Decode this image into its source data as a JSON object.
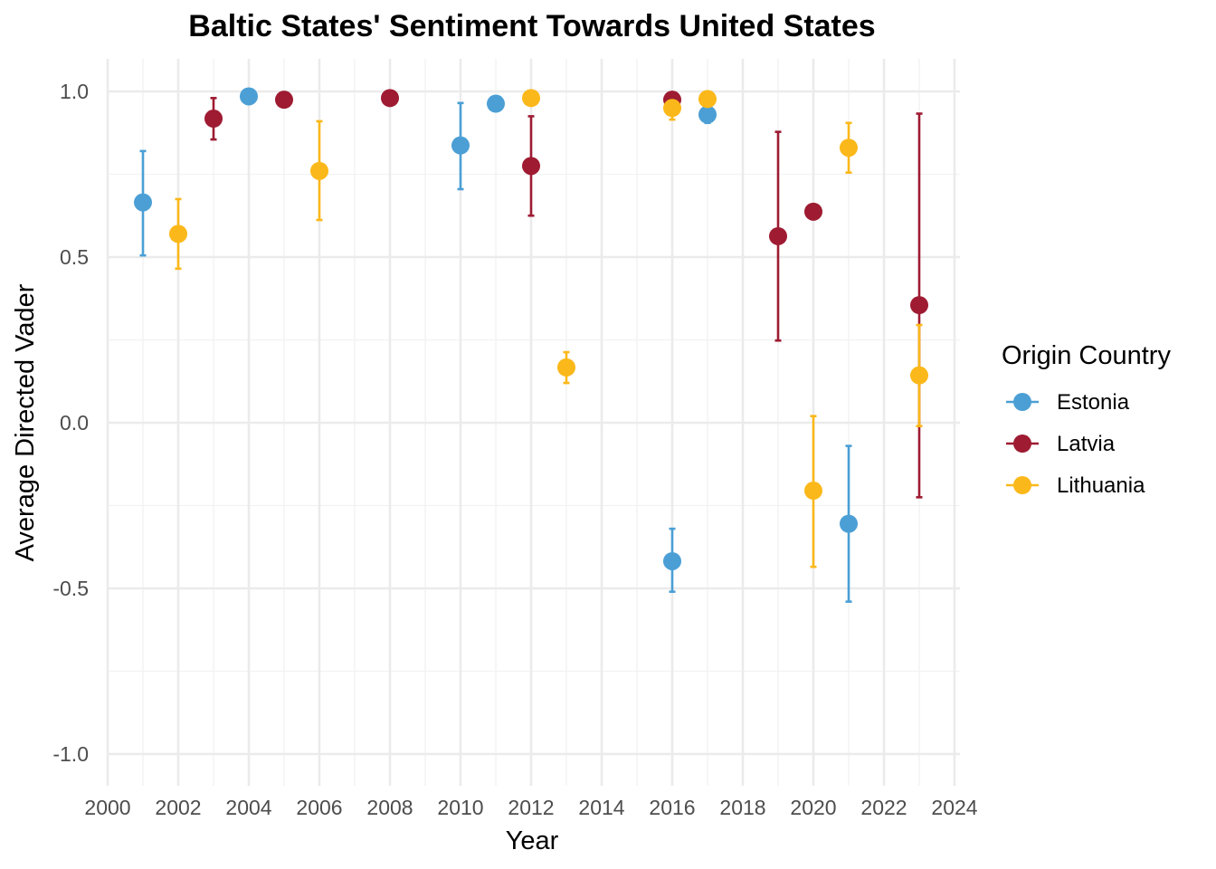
{
  "chart_data": {
    "type": "scatter",
    "title": "Baltic States' Sentiment Towards United States",
    "xlabel": "Year",
    "ylabel": "Average Directed Vader",
    "xlim": [
      2000,
      2024
    ],
    "ylim": [
      -1.1,
      1.1
    ],
    "x_ticks": [
      "2000",
      "2002",
      "2004",
      "2006",
      "2008",
      "2010",
      "2012",
      "2014",
      "2016",
      "2018",
      "2020",
      "2022",
      "2024"
    ],
    "y_ticks": [
      "-1.0",
      "-0.5",
      "0.0",
      "0.5",
      "1.0"
    ],
    "x_tick_values": [
      2000,
      2002,
      2004,
      2006,
      2008,
      2010,
      2012,
      2014,
      2016,
      2018,
      2020,
      2022,
      2024
    ],
    "y_tick_values": [
      -1.0,
      -0.5,
      0.0,
      0.5,
      1.0
    ],
    "grid": true,
    "legend": {
      "title": "Origin Country",
      "position": "right"
    },
    "series": [
      {
        "name": "Estonia",
        "color": "#4b9fd5",
        "points": [
          {
            "x": 2001,
            "y": 0.665,
            "ymin": 0.505,
            "ymax": 0.82
          },
          {
            "x": 2004,
            "y": 0.985
          },
          {
            "x": 2010,
            "y": 0.837,
            "ymin": 0.705,
            "ymax": 0.965
          },
          {
            "x": 2011,
            "y": 0.963
          },
          {
            "x": 2016,
            "y": -0.418,
            "ymin": -0.51,
            "ymax": -0.32
          },
          {
            "x": 2017,
            "y": 0.93,
            "ymin": 0.905,
            "ymax": 0.96
          },
          {
            "x": 2021,
            "y": -0.305,
            "ymin": -0.54,
            "ymax": -0.07
          }
        ]
      },
      {
        "name": "Latvia",
        "color": "#9e1b32",
        "points": [
          {
            "x": 2003,
            "y": 0.918,
            "ymin": 0.855,
            "ymax": 0.98
          },
          {
            "x": 2005,
            "y": 0.975
          },
          {
            "x": 2008,
            "y": 0.98
          },
          {
            "x": 2012,
            "y": 0.775,
            "ymin": 0.625,
            "ymax": 0.925
          },
          {
            "x": 2016,
            "y": 0.975
          },
          {
            "x": 2019,
            "y": 0.563,
            "ymin": 0.248,
            "ymax": 0.878
          },
          {
            "x": 2020,
            "y": 0.637
          },
          {
            "x": 2023,
            "y": 0.355,
            "ymin": -0.225,
            "ymax": 0.933
          }
        ]
      },
      {
        "name": "Lithuania",
        "color": "#fbb81a",
        "points": [
          {
            "x": 2002,
            "y": 0.57,
            "ymin": 0.465,
            "ymax": 0.675
          },
          {
            "x": 2006,
            "y": 0.76,
            "ymin": 0.612,
            "ymax": 0.91
          },
          {
            "x": 2012,
            "y": 0.98
          },
          {
            "x": 2013,
            "y": 0.167,
            "ymin": 0.12,
            "ymax": 0.213
          },
          {
            "x": 2016,
            "y": 0.95,
            "ymin": 0.915,
            "ymax": 0.985
          },
          {
            "x": 2017,
            "y": 0.977
          },
          {
            "x": 2020,
            "y": -0.205,
            "ymin": -0.435,
            "ymax": 0.02
          },
          {
            "x": 2021,
            "y": 0.83,
            "ymin": 0.755,
            "ymax": 0.905
          },
          {
            "x": 2023,
            "y": 0.143,
            "ymin": -0.01,
            "ymax": 0.295
          }
        ]
      }
    ]
  }
}
